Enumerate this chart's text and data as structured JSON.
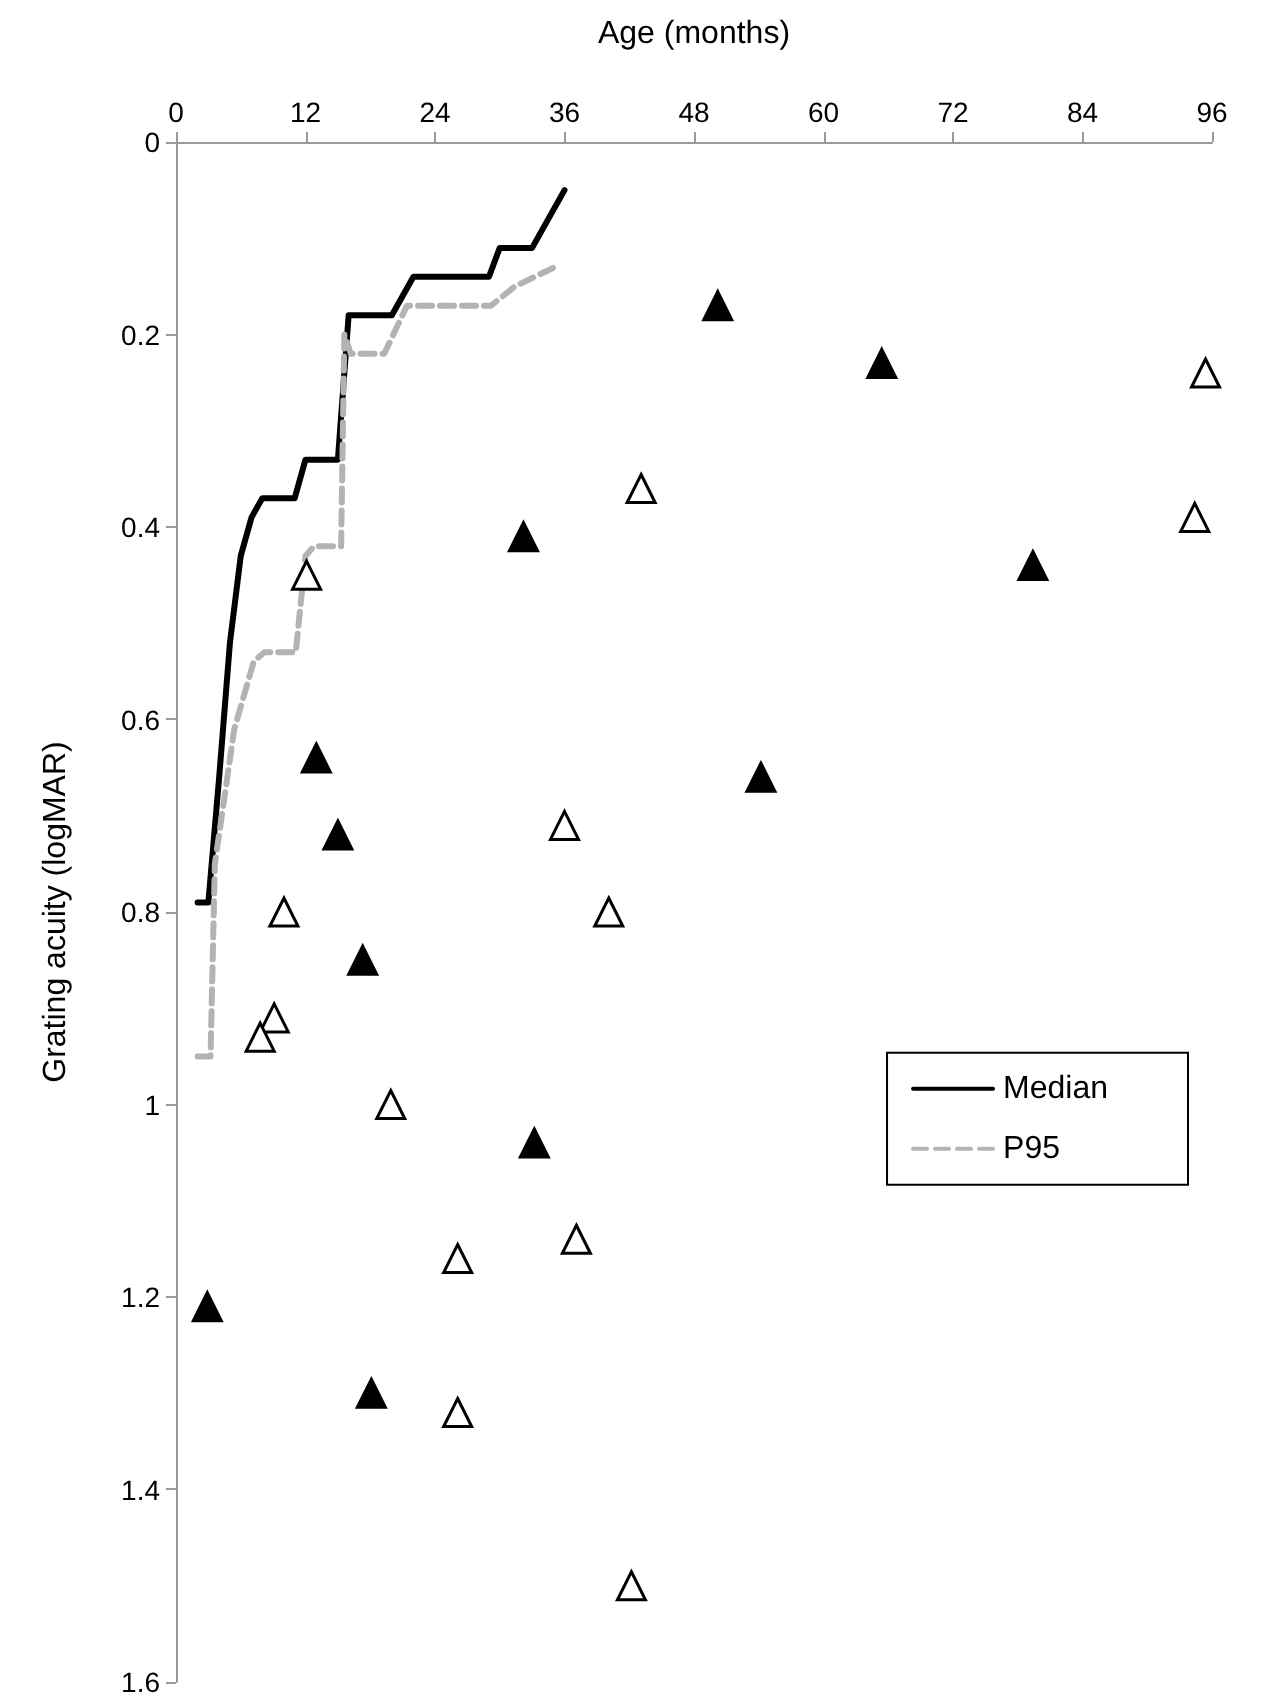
{
  "chart_data": {
    "type": "line",
    "xlabel": "Age (months)",
    "ylabel": "Grating acuity (logMAR)",
    "xlim": [
      0,
      96
    ],
    "xticks": [
      0,
      12,
      24,
      36,
      48,
      60,
      72,
      84,
      96
    ],
    "ylim": [
      1.6,
      0
    ],
    "yticks": [
      0,
      0.2,
      0.4,
      0.6,
      0.8,
      1.0,
      1.2,
      1.4,
      1.6
    ],
    "grid": false,
    "legend": "right",
    "series": [
      {
        "name": "Median",
        "color": "#000000",
        "line_style": "solid",
        "marker": "none",
        "x": [
          2,
          3,
          4,
          5,
          6,
          7,
          8,
          11,
          12,
          15,
          16,
          20,
          22,
          29,
          30,
          33,
          36
        ],
        "values": [
          0.79,
          0.79,
          0.66,
          0.52,
          0.43,
          0.39,
          0.37,
          0.37,
          0.33,
          0.33,
          0.18,
          0.18,
          0.14,
          0.14,
          0.11,
          0.11,
          0.05
        ]
      },
      {
        "name": "P95",
        "color": "#b3b3b3",
        "line_style": "dashed",
        "marker": "none",
        "x": [
          2,
          3.2,
          3.6,
          5.4,
          7.2,
          8.2,
          11.1,
          12,
          12.8,
          15.3,
          15.6,
          16.2,
          19.3,
          21.4,
          29.2,
          31.4,
          35.1
        ],
        "values": [
          0.95,
          0.95,
          0.75,
          0.61,
          0.54,
          0.53,
          0.53,
          0.43,
          0.42,
          0.42,
          0.2,
          0.22,
          0.22,
          0.17,
          0.17,
          0.15,
          0.13
        ]
      },
      {
        "type": "scatter",
        "color": "#000000",
        "marker": "triangle",
        "x": [
          50.2,
          65.4,
          79.4,
          54.2,
          32.2,
          13,
          15,
          17.3,
          33.2,
          2.9,
          18.1
        ],
        "values": [
          0.17,
          0.23,
          0.44,
          0.66,
          0.41,
          0.64,
          0.72,
          0.85,
          1.04,
          1.21,
          1.3
        ]
      },
      {
        "type": "scatter",
        "color": "#ffffff",
        "marker": "triangle",
        "x": [
          95.4,
          94.4,
          43.1,
          12.1,
          36,
          40.1,
          10,
          9.1,
          7.8,
          19.9,
          26.1,
          37.1,
          26.1,
          42.2
        ],
        "values": [
          0.24,
          0.39,
          0.36,
          0.45,
          0.71,
          0.8,
          0.8,
          0.91,
          0.93,
          1.0,
          1.16,
          1.14,
          1.32,
          1.5
        ]
      }
    ]
  }
}
